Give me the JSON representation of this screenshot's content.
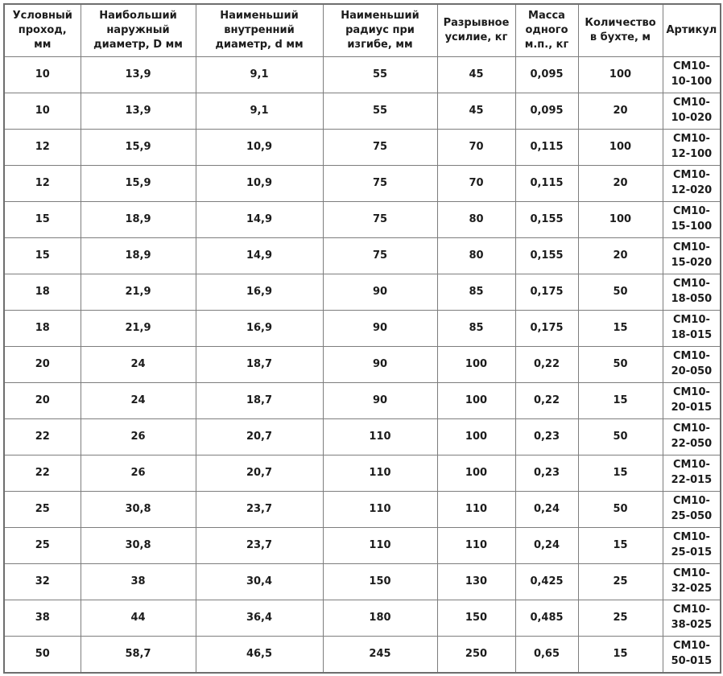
{
  "table": {
    "column_keys": [
      "nominal-bore",
      "max-outer-diameter",
      "min-inner-diameter",
      "min-bend-radius",
      "breaking-force",
      "mass-per-meter",
      "coil-length",
      "article"
    ],
    "columns": [
      "Условный проход, мм",
      "Наибольший наружный диаметр, D мм",
      "Наименьший внутренний диаметр, d мм",
      "Наименьший радиус при изгибе, мм",
      "Разрывное усилие, кг",
      "Масса одного м.п., кг",
      "Количество в бухте, м",
      "Артикул"
    ],
    "rows": [
      [
        "10",
        "13,9",
        "9,1",
        "55",
        "45",
        "0,095",
        "100",
        "СМ10-10-100"
      ],
      [
        "10",
        "13,9",
        "9,1",
        "55",
        "45",
        "0,095",
        "20",
        "СМ10-10-020"
      ],
      [
        "12",
        "15,9",
        "10,9",
        "75",
        "70",
        "0,115",
        "100",
        "СМ10-12-100"
      ],
      [
        "12",
        "15,9",
        "10,9",
        "75",
        "70",
        "0,115",
        "20",
        "СМ10-12-020"
      ],
      [
        "15",
        "18,9",
        "14,9",
        "75",
        "80",
        "0,155",
        "100",
        "СМ10-15-100"
      ],
      [
        "15",
        "18,9",
        "14,9",
        "75",
        "80",
        "0,155",
        "20",
        "СМ10-15-020"
      ],
      [
        "18",
        "21,9",
        "16,9",
        "90",
        "85",
        "0,175",
        "50",
        "СМ10-18-050"
      ],
      [
        "18",
        "21,9",
        "16,9",
        "90",
        "85",
        "0,175",
        "15",
        "СМ10-18-015"
      ],
      [
        "20",
        "24",
        "18,7",
        "90",
        "100",
        "0,22",
        "50",
        "СМ10-20-050"
      ],
      [
        "20",
        "24",
        "18,7",
        "90",
        "100",
        "0,22",
        "15",
        "СМ10-20-015"
      ],
      [
        "22",
        "26",
        "20,7",
        "110",
        "100",
        "0,23",
        "50",
        "СМ10-22-050"
      ],
      [
        "22",
        "26",
        "20,7",
        "110",
        "100",
        "0,23",
        "15",
        "СМ10-22-015"
      ],
      [
        "25",
        "30,8",
        "23,7",
        "110",
        "110",
        "0,24",
        "50",
        "СМ10-25-050"
      ],
      [
        "25",
        "30,8",
        "23,7",
        "110",
        "110",
        "0,24",
        "15",
        "СМ10-25-015"
      ],
      [
        "32",
        "38",
        "30,4",
        "150",
        "130",
        "0,425",
        "25",
        "СМ10-32-025"
      ],
      [
        "38",
        "44",
        "36,4",
        "180",
        "150",
        "0,485",
        "25",
        "СМ10-38-025"
      ],
      [
        "50",
        "58,7",
        "46,5",
        "245",
        "250",
        "0,65",
        "15",
        "СМ10-50-015"
      ]
    ],
    "colors": {
      "border": "#7d7d7d",
      "outer_border": "#6e6e6e",
      "text": "#1c1c1c",
      "background": "#ffffff"
    }
  }
}
